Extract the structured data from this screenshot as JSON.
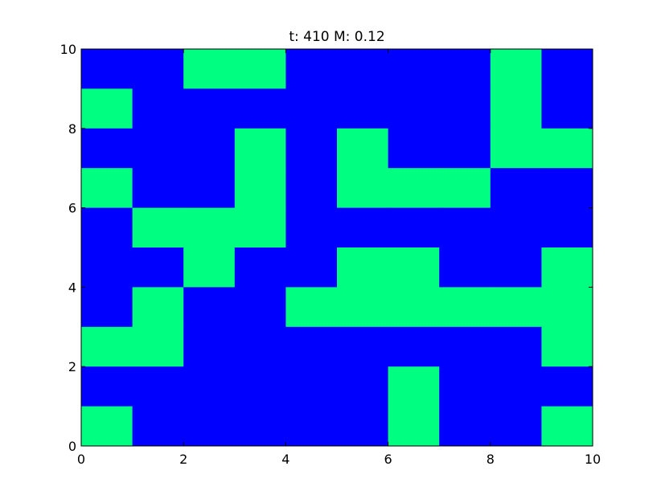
{
  "chart_data": {
    "type": "heatmap",
    "title": "t: 410  M: 0.12",
    "xlabel": "",
    "ylabel": "",
    "xlim": [
      0,
      10
    ],
    "ylim": [
      0,
      10
    ],
    "x_ticks": [
      "0",
      "2",
      "4",
      "6",
      "8",
      "10"
    ],
    "y_ticks": [
      "0",
      "2",
      "4",
      "6",
      "8",
      "10"
    ],
    "grid": false,
    "colors": {
      "0": "#0000ff",
      "1": "#00ff80"
    },
    "rows_top_to_bottom": [
      [
        0,
        0,
        1,
        1,
        0,
        0,
        0,
        0,
        1,
        0
      ],
      [
        1,
        0,
        0,
        0,
        0,
        0,
        0,
        0,
        1,
        0
      ],
      [
        0,
        0,
        0,
        1,
        0,
        1,
        0,
        0,
        1,
        1
      ],
      [
        1,
        0,
        0,
        1,
        0,
        1,
        1,
        1,
        0,
        0
      ],
      [
        0,
        1,
        1,
        1,
        0,
        0,
        0,
        0,
        0,
        0
      ],
      [
        0,
        0,
        1,
        0,
        0,
        1,
        1,
        0,
        0,
        1
      ],
      [
        0,
        1,
        0,
        0,
        1,
        1,
        1,
        1,
        1,
        1
      ],
      [
        1,
        1,
        0,
        0,
        0,
        0,
        0,
        0,
        0,
        1
      ],
      [
        0,
        0,
        0,
        0,
        0,
        0,
        1,
        0,
        0,
        0
      ],
      [
        1,
        0,
        0,
        0,
        0,
        0,
        1,
        0,
        0,
        1
      ]
    ]
  }
}
